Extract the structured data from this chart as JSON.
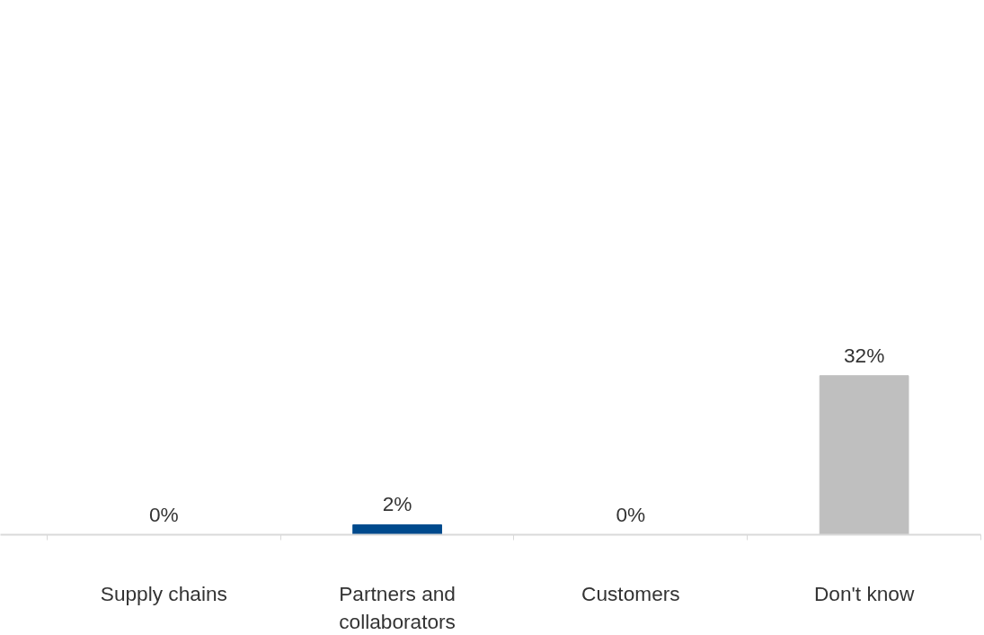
{
  "chart_data": {
    "type": "bar",
    "categories": [
      "Supply chains",
      "Partners and\ncollaborators",
      "Customers",
      "Don't know"
    ],
    "values": [
      0,
      2,
      0,
      32
    ],
    "value_labels": [
      "0%",
      "2%",
      "0%",
      "32%"
    ],
    "colors": [
      "#004a8d",
      "#004a8d",
      "#004a8d",
      "#bfbfbf"
    ],
    "data_labels": true,
    "grid": false,
    "tick_labels": "x"
  }
}
